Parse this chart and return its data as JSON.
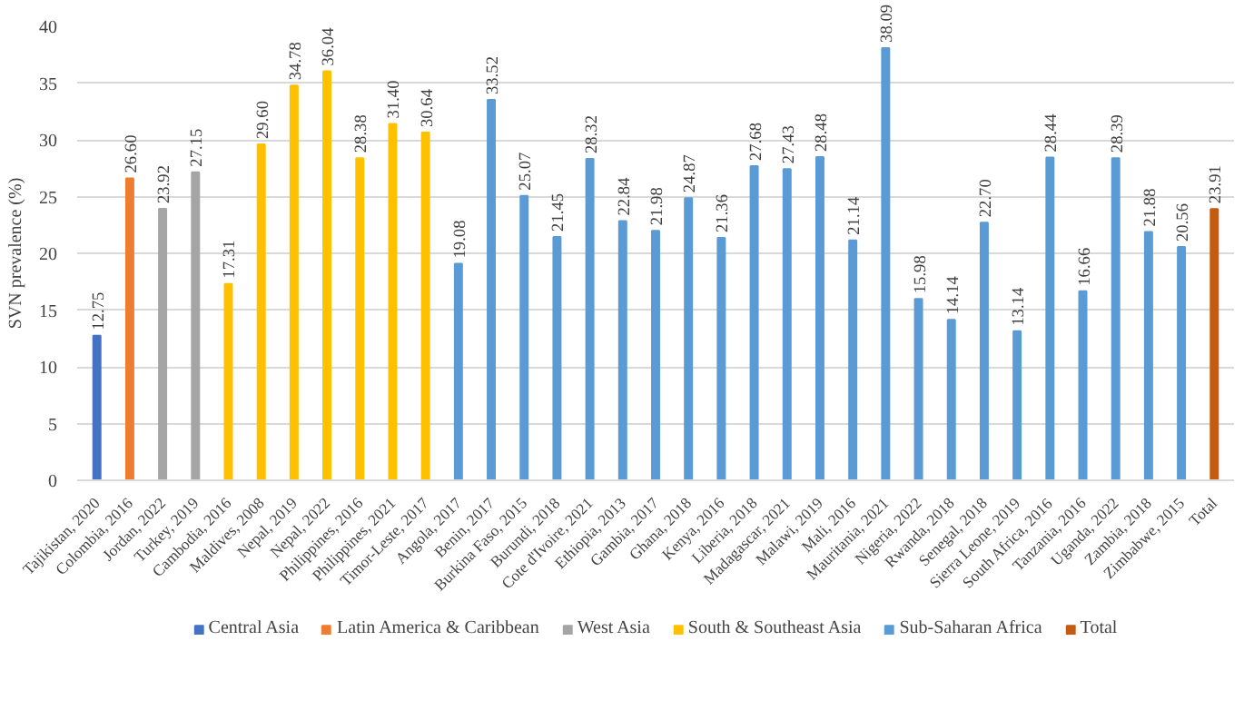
{
  "chart_data": {
    "type": "bar",
    "ylabel": "SVN prevalence (%)",
    "categories": [
      "Tajikistan, 2020",
      "Colombia, 2016",
      "Jordan, 2022",
      "Turkey, 2019",
      "Cambodia, 2016",
      "Maldives, 2008",
      "Nepal, 2019",
      "Nepal, 2022",
      "Philippines, 2016",
      "Philippines, 2021",
      "Timor-Leste, 2017",
      "Angola, 2017",
      "Benin, 2017",
      "Burkina Faso, 2015",
      "Burundi, 2018",
      "Cote d'Ivoire, 2021",
      "Ethiopia, 2013",
      "Gambia, 2017",
      "Ghana, 2018",
      "Kenya, 2016",
      "Liberia, 2018",
      "Madagascar, 2021",
      "Malawi, 2019",
      "Mali, 2016",
      "Mauritania, 2021",
      "Nigeria, 2022",
      "Rwanda, 2018",
      "Senegal, 2018",
      "Sierra Leone, 2019",
      "South Africa, 2016",
      "Tanzania, 2016",
      "Uganda, 2022",
      "Zambia, 2018",
      "Zimbabwe, 2015",
      "Total"
    ],
    "series": [
      {
        "name": "Central Asia",
        "color": "#4472c4",
        "values": [
          12.75,
          null,
          null,
          null,
          null,
          null,
          null,
          null,
          null,
          null,
          null,
          null,
          null,
          null,
          null,
          null,
          null,
          null,
          null,
          null,
          null,
          null,
          null,
          null,
          null,
          null,
          null,
          null,
          null,
          null,
          null,
          null,
          null,
          null,
          null
        ],
        "value_labels": [
          "12.75",
          null,
          null,
          null,
          null,
          null,
          null,
          null,
          null,
          null,
          null,
          null,
          null,
          null,
          null,
          null,
          null,
          null,
          null,
          null,
          null,
          null,
          null,
          null,
          null,
          null,
          null,
          null,
          null,
          null,
          null,
          null,
          null,
          null,
          null
        ]
      },
      {
        "name": "Latin America & Caribbean",
        "color": "#ed7d31",
        "values": [
          null,
          26.6,
          null,
          null,
          null,
          null,
          null,
          null,
          null,
          null,
          null,
          null,
          null,
          null,
          null,
          null,
          null,
          null,
          null,
          null,
          null,
          null,
          null,
          null,
          null,
          null,
          null,
          null,
          null,
          null,
          null,
          null,
          null,
          null,
          null
        ],
        "value_labels": [
          null,
          "26.60",
          null,
          null,
          null,
          null,
          null,
          null,
          null,
          null,
          null,
          null,
          null,
          null,
          null,
          null,
          null,
          null,
          null,
          null,
          null,
          null,
          null,
          null,
          null,
          null,
          null,
          null,
          null,
          null,
          null,
          null,
          null,
          null,
          null
        ]
      },
      {
        "name": "West Asia",
        "color": "#a5a5a5",
        "values": [
          null,
          null,
          23.92,
          27.15,
          null,
          null,
          null,
          null,
          null,
          null,
          null,
          null,
          null,
          null,
          null,
          null,
          null,
          null,
          null,
          null,
          null,
          null,
          null,
          null,
          null,
          null,
          null,
          null,
          null,
          null,
          null,
          null,
          null,
          null,
          null
        ],
        "value_labels": [
          null,
          null,
          "23.92",
          "27.15",
          null,
          null,
          null,
          null,
          null,
          null,
          null,
          null,
          null,
          null,
          null,
          null,
          null,
          null,
          null,
          null,
          null,
          null,
          null,
          null,
          null,
          null,
          null,
          null,
          null,
          null,
          null,
          null,
          null,
          null,
          null
        ]
      },
      {
        "name": "South & Southeast Asia",
        "color": "#ffc000",
        "values": [
          null,
          null,
          null,
          null,
          17.31,
          29.6,
          34.78,
          36.04,
          28.38,
          31.4,
          30.64,
          null,
          null,
          null,
          null,
          null,
          null,
          null,
          null,
          null,
          null,
          null,
          null,
          null,
          null,
          null,
          null,
          null,
          null,
          null,
          null,
          null,
          null,
          null,
          null
        ],
        "value_labels": [
          null,
          null,
          null,
          null,
          "17.31",
          "29.60",
          "34.78",
          "36.04",
          "28.38",
          "31.40",
          "30.64",
          null,
          null,
          null,
          null,
          null,
          null,
          null,
          null,
          null,
          null,
          null,
          null,
          null,
          null,
          null,
          null,
          null,
          null,
          null,
          null,
          null,
          null,
          null,
          null
        ]
      },
      {
        "name": "Sub-Saharan Africa",
        "color": "#5b9bd5",
        "values": [
          null,
          null,
          null,
          null,
          null,
          null,
          null,
          null,
          null,
          null,
          null,
          19.08,
          33.52,
          25.07,
          21.45,
          28.32,
          22.84,
          21.98,
          24.87,
          21.36,
          27.68,
          27.43,
          28.48,
          21.14,
          38.09,
          15.98,
          14.14,
          22.7,
          13.14,
          28.44,
          16.66,
          28.39,
          21.88,
          20.56,
          null
        ],
        "value_labels": [
          null,
          null,
          null,
          null,
          null,
          null,
          null,
          null,
          null,
          null,
          null,
          "19.08",
          "33.52",
          "25.07",
          "21.45",
          "28.32",
          "22.84",
          "21.98",
          "24.87",
          "21.36",
          "27.68",
          "27.43",
          "28.48",
          "21.14",
          "38.09",
          "15.98",
          "14.14",
          "22.70",
          "13.14",
          "28.44",
          "16.66",
          "28.39",
          "21.88",
          "20.56",
          null
        ]
      },
      {
        "name": "Total",
        "color": "#c55a11",
        "values": [
          null,
          null,
          null,
          null,
          null,
          null,
          null,
          null,
          null,
          null,
          null,
          null,
          null,
          null,
          null,
          null,
          null,
          null,
          null,
          null,
          null,
          null,
          null,
          null,
          null,
          null,
          null,
          null,
          null,
          null,
          null,
          null,
          null,
          null,
          23.91
        ],
        "value_labels": [
          null,
          null,
          null,
          null,
          null,
          null,
          null,
          null,
          null,
          null,
          null,
          null,
          null,
          null,
          null,
          null,
          null,
          null,
          null,
          null,
          null,
          null,
          null,
          null,
          null,
          null,
          null,
          null,
          null,
          null,
          null,
          null,
          null,
          null,
          "23.91"
        ]
      }
    ],
    "ylim": [
      0,
      40
    ],
    "yticks": [
      0,
      5,
      10,
      15,
      20,
      25,
      30,
      35,
      40
    ],
    "grid": "y",
    "legend": "bottom"
  }
}
